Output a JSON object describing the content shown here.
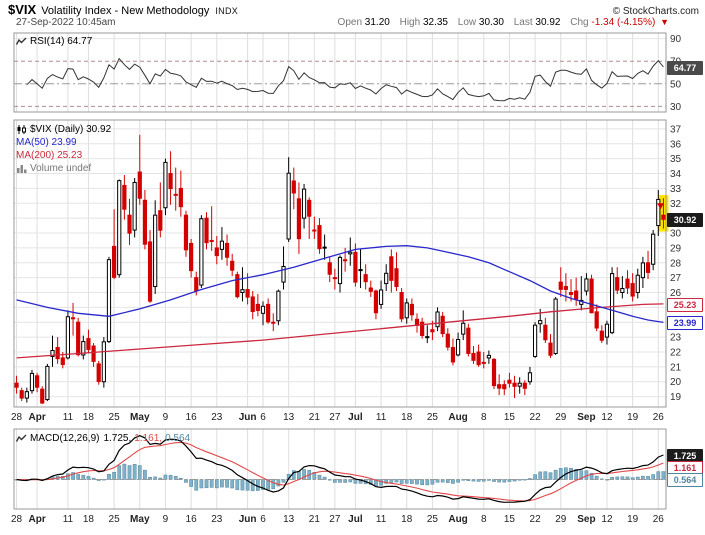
{
  "header": {
    "symbol": "$VIX",
    "title": "Volatility Index - New Methodology",
    "exchange": "INDX",
    "credit": "© StockCharts.com",
    "datetime": "27-Sep-2022 10:45am",
    "quote": {
      "open_label": "Open",
      "open": "31.20",
      "high_label": "High",
      "high": "32.35",
      "low_label": "Low",
      "low": "30.30",
      "last_label": "Last",
      "last": "30.92",
      "chg_label": "Chg",
      "chg": "-1.34 (-4.15%)",
      "chg_dir": "▼"
    }
  },
  "rsi_panel": {
    "legend": "RSI(14) 64.77",
    "value_label": "64.77",
    "value": 64.77,
    "axis_labels": [
      90,
      70,
      50,
      30
    ],
    "overbought": 70,
    "oversold": 30,
    "mid": 50
  },
  "main_panel": {
    "legend_symbol": "$VIX (Daily) 30.92",
    "legend_ma50": "MA(50) 23.99",
    "legend_ma200": "MA(200) 25.23",
    "legend_volume": "Volume undef",
    "last_label": "30.92",
    "last": 30.92,
    "ma50_label": "23.99",
    "ma50": 23.99,
    "ma200_label": "25.23",
    "ma200": 25.23
  },
  "macd_panel": {
    "legend_name": "MACD(12,26,9)",
    "v1": "1.725,",
    "v2": "1.161,",
    "v3": "0.564",
    "box1": "1.725",
    "box2": "1.161",
    "box3": "0.564",
    "values": [
      1.725,
      1.161,
      0.564
    ]
  },
  "colors": {
    "up": "#000000",
    "down": "#d40000",
    "ma50": "#2828cc",
    "ma200": "#cc2840",
    "rsi_line": "#333333",
    "macd_line": "#000000",
    "signal_line": "#e04848",
    "hist_fill": "#7fb2c8",
    "hist_stroke": "#55869e",
    "grid_h": "#e4e4e4",
    "grid_v": "#dedede",
    "panel_border": "#999999",
    "axis_text": "#333333",
    "rsi_band": "#b28c8c",
    "rsi_mid": "#9a9a9a",
    "highlight": "#ffe400",
    "chg": "#cc0000"
  },
  "chart_data": {
    "type": "candlestick",
    "symbol": "$VIX",
    "timeframe": "Daily",
    "y_axis": {
      "min": 19,
      "max": 37,
      "step": 1
    },
    "x_ticks": [
      {
        "label": "28",
        "i": 0,
        "b": 0
      },
      {
        "label": "Apr",
        "i": 4,
        "b": 1
      },
      {
        "label": "11",
        "i": 10,
        "b": 0
      },
      {
        "label": "18",
        "i": 14,
        "b": 0
      },
      {
        "label": "25",
        "i": 19,
        "b": 0
      },
      {
        "label": "May",
        "i": 24,
        "b": 1
      },
      {
        "label": "9",
        "i": 29,
        "b": 0
      },
      {
        "label": "16",
        "i": 34,
        "b": 0
      },
      {
        "label": "23",
        "i": 39,
        "b": 0
      },
      {
        "label": "Jun",
        "i": 45,
        "b": 1
      },
      {
        "label": "6",
        "i": 48,
        "b": 0
      },
      {
        "label": "13",
        "i": 53,
        "b": 0
      },
      {
        "label": "21",
        "i": 58,
        "b": 0
      },
      {
        "label": "27",
        "i": 62,
        "b": 0
      },
      {
        "label": "Jul",
        "i": 66,
        "b": 1
      },
      {
        "label": "11",
        "i": 71,
        "b": 0
      },
      {
        "label": "18",
        "i": 76,
        "b": 0
      },
      {
        "label": "25",
        "i": 81,
        "b": 0
      },
      {
        "label": "Aug",
        "i": 86,
        "b": 1
      },
      {
        "label": "8",
        "i": 91,
        "b": 0
      },
      {
        "label": "15",
        "i": 96,
        "b": 0
      },
      {
        "label": "22",
        "i": 101,
        "b": 0
      },
      {
        "label": "29",
        "i": 106,
        "b": 0
      },
      {
        "label": "Sep",
        "i": 111,
        "b": 1
      },
      {
        "label": "12",
        "i": 115,
        "b": 0
      },
      {
        "label": "19",
        "i": 120,
        "b": 0
      },
      {
        "label": "26",
        "i": 125,
        "b": 0
      }
    ],
    "ohlc": [
      [
        "3/28",
        19.9,
        20.4,
        19.2,
        19.63
      ],
      [
        "3/29",
        19.4,
        19.6,
        18.7,
        18.9
      ],
      [
        "3/30",
        18.9,
        19.6,
        18.6,
        19.33
      ],
      [
        "3/31",
        19.4,
        20.8,
        19.2,
        20.56
      ],
      [
        "4/1",
        20.4,
        20.6,
        19.3,
        19.63
      ],
      [
        "4/4",
        19.5,
        19.7,
        18.5,
        18.57
      ],
      [
        "4/5",
        18.8,
        21.2,
        18.7,
        21.03
      ],
      [
        "4/6",
        21.7,
        23.1,
        21.0,
        22.1
      ],
      [
        "4/7",
        22.3,
        23.0,
        21.2,
        21.55
      ],
      [
        "4/8",
        21.6,
        22.0,
        20.9,
        21.16
      ],
      [
        "4/11",
        21.6,
        24.8,
        21.5,
        24.37
      ],
      [
        "4/12",
        24.3,
        25.3,
        23.1,
        24.26
      ],
      [
        "4/13",
        24.0,
        24.3,
        21.7,
        21.82
      ],
      [
        "4/14",
        21.8,
        23.1,
        21.5,
        22.7
      ],
      [
        "4/18",
        22.9,
        23.5,
        21.9,
        22.17
      ],
      [
        "4/19",
        22.4,
        22.6,
        21.0,
        21.37
      ],
      [
        "4/20",
        21.2,
        21.4,
        19.8,
        20.02
      ],
      [
        "4/21",
        20.0,
        23.0,
        19.6,
        22.68
      ],
      [
        "4/22",
        22.7,
        28.4,
        22.6,
        28.21
      ],
      [
        "4/25",
        29.1,
        31.6,
        26.9,
        27.02
      ],
      [
        "4/26",
        27.2,
        33.6,
        27.0,
        33.52
      ],
      [
        "4/27",
        33.2,
        33.9,
        30.9,
        31.6
      ],
      [
        "4/28",
        31.2,
        32.3,
        29.2,
        29.99
      ],
      [
        "4/29",
        30.2,
        33.7,
        29.7,
        33.4
      ],
      [
        "5/2",
        34.1,
        36.6,
        31.9,
        32.34
      ],
      [
        "5/3",
        32.2,
        32.9,
        28.9,
        29.25
      ],
      [
        "5/4",
        29.4,
        30.2,
        25.3,
        25.42
      ],
      [
        "5/5",
        26.4,
        32.2,
        25.9,
        31.2
      ],
      [
        "5/6",
        31.5,
        33.4,
        29.7,
        30.19
      ],
      [
        "5/9",
        31.7,
        35.0,
        31.2,
        34.75
      ],
      [
        "5/10",
        34.0,
        35.5,
        31.9,
        32.99
      ],
      [
        "5/11",
        32.6,
        34.4,
        31.5,
        32.56
      ],
      [
        "5/12",
        33.0,
        34.2,
        31.1,
        31.77
      ],
      [
        "5/13",
        31.2,
        31.5,
        28.4,
        28.87
      ],
      [
        "5/16",
        29.3,
        29.6,
        27.0,
        27.47
      ],
      [
        "5/17",
        27.0,
        27.4,
        25.8,
        26.1
      ],
      [
        "5/18",
        26.5,
        31.2,
        26.3,
        30.96
      ],
      [
        "5/19",
        31.0,
        31.4,
        28.9,
        29.35
      ],
      [
        "5/20",
        29.5,
        31.8,
        28.8,
        29.43
      ],
      [
        "5/23",
        29.0,
        29.8,
        27.9,
        28.48
      ],
      [
        "5/24",
        28.9,
        30.4,
        28.2,
        29.45
      ],
      [
        "5/25",
        29.3,
        29.9,
        27.8,
        28.37
      ],
      [
        "5/26",
        28.1,
        28.6,
        27.1,
        27.5
      ],
      [
        "5/27",
        27.2,
        27.4,
        25.6,
        25.72
      ],
      [
        "5/31",
        26.0,
        27.7,
        25.4,
        26.19
      ],
      [
        "6/1",
        26.2,
        27.3,
        25.2,
        25.69
      ],
      [
        "6/2",
        25.7,
        26.1,
        24.2,
        24.72
      ],
      [
        "6/3",
        25.2,
        25.9,
        24.4,
        24.79
      ],
      [
        "6/6",
        24.6,
        25.4,
        23.8,
        25.07
      ],
      [
        "6/7",
        25.2,
        25.6,
        23.9,
        24.02
      ],
      [
        "6/8",
        24.0,
        24.6,
        23.4,
        23.96
      ],
      [
        "6/9",
        24.1,
        26.2,
        23.8,
        26.09
      ],
      [
        "6/10",
        26.7,
        29.1,
        26.2,
        27.75
      ],
      [
        "6/13",
        29.6,
        35.1,
        29.4,
        34.02
      ],
      [
        "6/14",
        33.5,
        34.4,
        31.6,
        32.69
      ],
      [
        "6/15",
        32.3,
        33.4,
        28.6,
        29.62
      ],
      [
        "6/16",
        31.0,
        33.3,
        30.3,
        32.95
      ],
      [
        "6/17",
        32.2,
        32.4,
        29.6,
        31.13
      ],
      [
        "6/21",
        30.2,
        31.1,
        29.6,
        30.19
      ],
      [
        "6/22",
        30.5,
        31.0,
        28.6,
        28.95
      ],
      [
        "6/23",
        29.0,
        29.9,
        28.2,
        29.05
      ],
      [
        "6/24",
        28.0,
        28.4,
        26.7,
        27.23
      ],
      [
        "6/27",
        27.0,
        27.6,
        26.2,
        26.95
      ],
      [
        "6/28",
        26.6,
        28.5,
        26.0,
        28.36
      ],
      [
        "6/29",
        28.2,
        29.0,
        27.4,
        28.16
      ],
      [
        "6/30",
        28.6,
        29.7,
        27.8,
        28.71
      ],
      [
        "7/1",
        28.7,
        29.3,
        26.4,
        26.7
      ],
      [
        "7/5",
        27.5,
        28.9,
        26.3,
        27.54
      ],
      [
        "7/6",
        27.2,
        27.9,
        26.2,
        26.73
      ],
      [
        "7/7",
        26.3,
        26.8,
        25.7,
        26.08
      ],
      [
        "7/8",
        26.1,
        26.2,
        24.2,
        24.64
      ],
      [
        "7/11",
        25.2,
        26.8,
        24.9,
        26.17
      ],
      [
        "7/12",
        26.6,
        27.9,
        26.1,
        27.29
      ],
      [
        "7/13",
        28.4,
        28.9,
        26.0,
        26.82
      ],
      [
        "7/14",
        27.6,
        28.7,
        26.1,
        26.4
      ],
      [
        "7/15",
        26.0,
        26.3,
        24.0,
        24.23
      ],
      [
        "7/18",
        24.3,
        25.6,
        23.9,
        25.3
      ],
      [
        "7/19",
        25.2,
        25.6,
        24.1,
        24.5
      ],
      [
        "7/20",
        24.2,
        24.6,
        23.3,
        23.79
      ],
      [
        "7/21",
        24.0,
        24.3,
        22.9,
        23.11
      ],
      [
        "7/22",
        23.0,
        23.8,
        22.6,
        23.03
      ],
      [
        "7/25",
        23.5,
        24.1,
        22.8,
        23.36
      ],
      [
        "7/26",
        23.7,
        25.0,
        23.4,
        24.69
      ],
      [
        "7/27",
        24.4,
        24.7,
        23.0,
        23.24
      ],
      [
        "7/28",
        23.2,
        23.6,
        22.1,
        22.33
      ],
      [
        "7/29",
        22.3,
        22.9,
        21.1,
        21.33
      ],
      [
        "8/1",
        21.8,
        23.3,
        21.7,
        22.84
      ],
      [
        "8/2",
        23.2,
        24.8,
        22.8,
        23.93
      ],
      [
        "8/3",
        23.6,
        23.9,
        21.7,
        21.9
      ],
      [
        "8/4",
        21.9,
        22.4,
        21.2,
        21.44
      ],
      [
        "8/5",
        22.0,
        22.5,
        21.0,
        21.15
      ],
      [
        "8/8",
        21.3,
        22.0,
        20.9,
        21.29
      ],
      [
        "8/9",
        21.6,
        22.1,
        21.2,
        21.77
      ],
      [
        "8/10",
        21.5,
        21.6,
        19.5,
        19.74
      ],
      [
        "8/11",
        19.8,
        20.5,
        19.1,
        19.57
      ],
      [
        "8/12",
        19.8,
        20.1,
        19.1,
        19.53
      ],
      [
        "8/15",
        20.1,
        20.6,
        19.6,
        19.9
      ],
      [
        "8/16",
        19.9,
        20.4,
        18.9,
        19.69
      ],
      [
        "8/17",
        19.7,
        20.3,
        19.2,
        19.9
      ],
      [
        "8/18",
        19.9,
        20.1,
        19.1,
        19.56
      ],
      [
        "8/19",
        20.0,
        21.0,
        19.8,
        20.6
      ],
      [
        "8/22",
        21.7,
        24.0,
        21.6,
        23.8
      ],
      [
        "8/23",
        23.9,
        24.9,
        23.3,
        24.11
      ],
      [
        "8/24",
        23.8,
        24.3,
        22.6,
        22.82
      ],
      [
        "8/25",
        22.6,
        23.2,
        21.6,
        21.78
      ],
      [
        "8/26",
        21.9,
        25.7,
        21.8,
        25.56
      ],
      [
        "8/29",
        26.7,
        27.7,
        25.7,
        26.21
      ],
      [
        "8/30",
        26.4,
        27.3,
        25.4,
        26.21
      ],
      [
        "8/31",
        26.0,
        26.9,
        25.4,
        25.87
      ],
      [
        "9/1",
        26.1,
        27.0,
        25.1,
        25.56
      ],
      [
        "9/2",
        25.2,
        27.1,
        24.8,
        25.47
      ],
      [
        "9/6",
        26.1,
        27.3,
        25.8,
        26.91
      ],
      [
        "9/7",
        26.9,
        27.2,
        24.6,
        24.64
      ],
      [
        "9/8",
        24.7,
        25.2,
        23.4,
        23.61
      ],
      [
        "9/9",
        23.4,
        23.8,
        22.6,
        22.79
      ],
      [
        "9/12",
        23.0,
        24.1,
        22.5,
        23.87
      ],
      [
        "9/13",
        23.3,
        27.7,
        23.2,
        27.27
      ],
      [
        "9/14",
        27.0,
        27.7,
        25.9,
        26.16
      ],
      [
        "9/15",
        26.0,
        27.1,
        25.6,
        26.27
      ],
      [
        "9/16",
        26.9,
        27.5,
        25.9,
        26.3
      ],
      [
        "9/19",
        26.6,
        27.3,
        25.4,
        25.76
      ],
      [
        "9/20",
        26.0,
        27.6,
        25.6,
        27.16
      ],
      [
        "9/21",
        27.0,
        28.4,
        26.3,
        27.99
      ],
      [
        "9/22",
        28.0,
        28.8,
        26.9,
        27.35
      ],
      [
        "9/23",
        27.9,
        30.2,
        27.5,
        29.92
      ],
      [
        "9/26",
        30.5,
        32.9,
        29.8,
        32.26
      ],
      [
        "9/27",
        31.2,
        32.35,
        30.3,
        30.92
      ]
    ],
    "ma50_points": [
      [
        0,
        25.5
      ],
      [
        6,
        25.0
      ],
      [
        12,
        24.6
      ],
      [
        18,
        24.4
      ],
      [
        24,
        24.9
      ],
      [
        30,
        25.5
      ],
      [
        36,
        26.2
      ],
      [
        42,
        26.8
      ],
      [
        48,
        27.2
      ],
      [
        54,
        27.7
      ],
      [
        60,
        28.3
      ],
      [
        66,
        28.9
      ],
      [
        72,
        29.1
      ],
      [
        76,
        29.15
      ],
      [
        80,
        29.0
      ],
      [
        84,
        28.7
      ],
      [
        88,
        28.4
      ],
      [
        92,
        28.0
      ],
      [
        96,
        27.4
      ],
      [
        100,
        26.8
      ],
      [
        104,
        26.1
      ],
      [
        108,
        25.6
      ],
      [
        112,
        25.2
      ],
      [
        116,
        24.8
      ],
      [
        120,
        24.4
      ],
      [
        123,
        24.15
      ],
      [
        126,
        23.99
      ]
    ],
    "ma200_points": [
      [
        0,
        21.6
      ],
      [
        12,
        21.9
      ],
      [
        24,
        22.2
      ],
      [
        36,
        22.5
      ],
      [
        48,
        22.8
      ],
      [
        60,
        23.2
      ],
      [
        72,
        23.6
      ],
      [
        84,
        24.0
      ],
      [
        96,
        24.4
      ],
      [
        104,
        24.7
      ],
      [
        112,
        24.95
      ],
      [
        118,
        25.1
      ],
      [
        122,
        25.2
      ],
      [
        126,
        25.23
      ]
    ],
    "indicators": {
      "rsi": {
        "period": 14,
        "last": 64.77
      },
      "macd": {
        "fast": 12,
        "slow": 26,
        "signal": 9,
        "last": [
          1.725,
          1.161,
          0.564
        ]
      }
    }
  }
}
